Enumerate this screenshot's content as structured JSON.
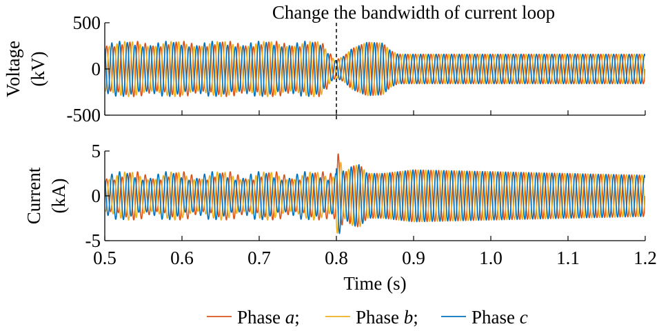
{
  "chart_data": {
    "type": "line",
    "x_unit": "s",
    "xlabel": "Time (s)",
    "xlim": [
      0.5,
      1.2
    ],
    "xticks": [
      "0.5",
      "0.6",
      "0.7",
      "0.8",
      "0.9",
      "1.0",
      "1.1",
      "1.2"
    ],
    "grid": false,
    "legend_placement": "bottom-center",
    "annotation": {
      "text": "Change the bandwidth of current loop",
      "x": 0.8,
      "style": "dashed vertical line"
    },
    "series_colors": [
      "#D95319",
      "#EDB120",
      "#0072BD"
    ],
    "legend": [
      {
        "prefix": "Phase ",
        "phase": "a",
        "suffix": ";",
        "color": "#D95319"
      },
      {
        "prefix": "Phase ",
        "phase": "b",
        "suffix": ";",
        "color": "#EDB120"
      },
      {
        "prefix": "Phase ",
        "phase": "c",
        "suffix": "",
        "color": "#0072BD"
      }
    ],
    "panels": [
      {
        "ylabel_line1": "Voltage",
        "ylabel_line2": "(kV)",
        "ylim": [
          -500,
          500
        ],
        "yticks": [
          "500",
          "0",
          "-500"
        ],
        "series": [
          {
            "name": "Phase a",
            "color": "#D95319"
          },
          {
            "name": "Phase b",
            "color": "#EDB120"
          },
          {
            "name": "Phase c",
            "color": "#0072BD"
          }
        ],
        "amplitude_envelope": {
          "t": [
            0.5,
            0.78,
            0.8,
            0.81,
            0.82,
            0.84,
            0.86,
            0.87,
            0.88,
            1.2
          ],
          "amp": [
            300,
            300,
            100,
            140,
            220,
            290,
            280,
            200,
            160,
            160
          ]
        },
        "beat_period_s": 0.06,
        "beat_depth": 0.2,
        "phase_offset_deg": [
          0,
          120,
          240
        ]
      },
      {
        "ylabel_line1": "Current",
        "ylabel_line2": "(kA)",
        "ylim": [
          -5,
          5
        ],
        "yticks": [
          "5",
          "0",
          "-5"
        ],
        "series": [
          {
            "name": "Phase a",
            "color": "#D95319"
          },
          {
            "name": "Phase b",
            "color": "#EDB120"
          },
          {
            "name": "Phase c",
            "color": "#0072BD"
          }
        ],
        "amplitude_envelope": {
          "t": [
            0.5,
            0.79,
            0.8,
            0.802,
            0.81,
            0.82,
            0.83,
            0.84,
            0.86,
            0.9,
            1.2
          ],
          "amp": [
            2.7,
            2.7,
            3.5,
            4.8,
            2.5,
            3.3,
            3.5,
            2.5,
            2.5,
            2.9,
            2.3
          ]
        },
        "beat_period_s": 0.06,
        "beat_depth": 0.35,
        "phase_offset_deg": [
          0,
          120,
          240
        ]
      }
    ],
    "fundamental_period_s": 0.01
  }
}
